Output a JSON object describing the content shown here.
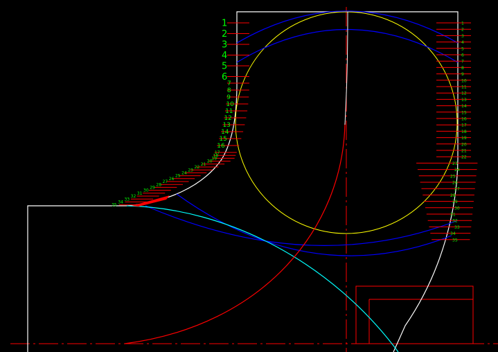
{
  "colors": {
    "background": "#000000",
    "outline": "#ffffff",
    "circle": "#ffff00",
    "blue_curves": "#0000ff",
    "cyan_curve": "#00ffff",
    "red": "#ff0000",
    "labels": "#00ff00"
  },
  "left_labels": [
    "1",
    "2",
    "3",
    "4",
    "5",
    "6",
    "7",
    "8",
    "9",
    "10",
    "11",
    "12",
    "13",
    "14",
    "15",
    "16",
    "17",
    "18",
    "19",
    "20",
    "21",
    "22",
    "23",
    "24",
    "25",
    "26",
    "27",
    "28",
    "29",
    "30",
    "31",
    "32",
    "33",
    "34",
    "35"
  ],
  "right_labels": [
    "1",
    "2",
    "3",
    "4",
    "5",
    "6",
    "7",
    "8",
    "9",
    "10",
    "11",
    "12",
    "13",
    "14",
    "15",
    "16",
    "17",
    "18",
    "19",
    "20",
    "21",
    "22",
    "23",
    "24",
    "25",
    "26",
    "27",
    "28",
    "29",
    "30",
    "31",
    "32",
    "33",
    "34",
    "35"
  ]
}
